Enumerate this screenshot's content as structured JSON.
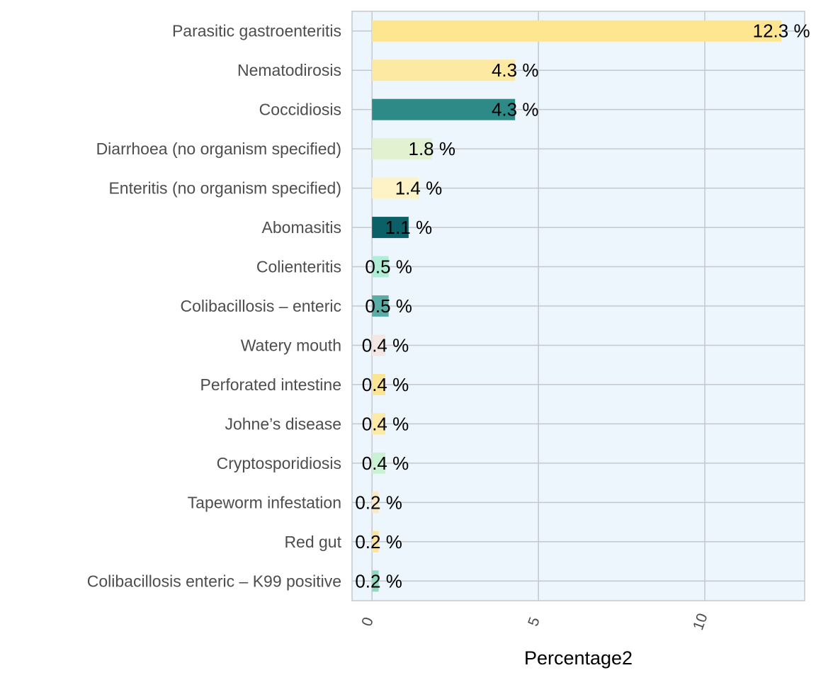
{
  "chart_data": {
    "type": "bar",
    "orientation": "horizontal",
    "categories": [
      "Parasitic gastroenteritis",
      "Nematodirosis",
      "Coccidiosis",
      "Diarrhoea (no organism specified)",
      "Enteritis (no organism specified)",
      "Abomasitis",
      "Colienteritis",
      "Colibacillosis – enteric",
      "Watery mouth",
      "Perforated intestine",
      "Johne’s disease",
      "Cryptosporidiosis",
      "Tapeworm infestation",
      "Red gut",
      "Colibacillosis enteric – K99 positive"
    ],
    "values": [
      12.3,
      4.3,
      4.3,
      1.8,
      1.4,
      1.1,
      0.5,
      0.5,
      0.4,
      0.4,
      0.4,
      0.4,
      0.2,
      0.2,
      0.2
    ],
    "data_labels": [
      "12.3 %",
      "4.3 %",
      "4.3 %",
      "1.8 %",
      "1.4 %",
      "1.1 %",
      "0.5 %",
      "0.5 %",
      "0.4 %",
      "0.4 %",
      "0.4 %",
      "0.4 %",
      "0.2 %",
      "0.2 %",
      "0.2 %"
    ],
    "bar_colors": [
      "#fde68f",
      "#fde9a1",
      "#2e8a87",
      "#e2f2d0",
      "#fdf3c6",
      "#0b5f66",
      "#aeeed6",
      "#5aada6",
      "#f4e7e3",
      "#fbe494",
      "#fdeaa6",
      "#c9f1d4",
      "#fae9c3",
      "#fce49a",
      "#8fd9c1"
    ],
    "xlabel": "Percentage2",
    "ylabel": "",
    "xlim": [
      -0.6,
      13.0
    ],
    "xticks": [
      0,
      5,
      10
    ],
    "xtick_labels": [
      "0",
      "5",
      "10"
    ],
    "grid": true,
    "panel_background": "#eef6fd",
    "grid_color": "#c4c8cc"
  }
}
